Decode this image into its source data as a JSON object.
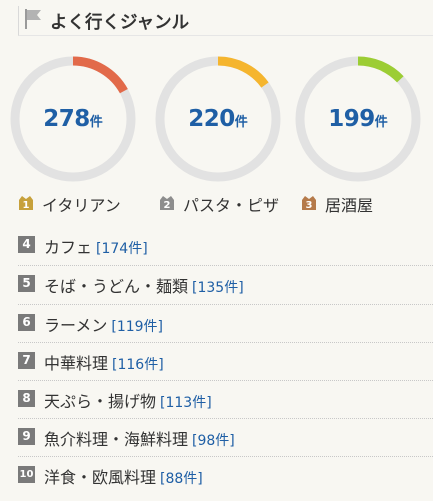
{
  "header": {
    "title": "よく行くジャンル",
    "icon": "flag-icon"
  },
  "colors": {
    "ring_track": "#e2e2e2",
    "count_text": "#1f5fa5",
    "rank_badge": "#7a7a7a"
  },
  "top_genres": [
    {
      "rank": "1",
      "name": "イタリアン",
      "count": "278",
      "unit": "件",
      "share": 0.17,
      "color": "#e26a4a",
      "badge_color": "#c7a13b"
    },
    {
      "rank": "2",
      "name": "パスタ・ピザ",
      "count": "220",
      "unit": "件",
      "share": 0.15,
      "color": "#f5b52e",
      "badge_color": "#8d8d8d"
    },
    {
      "rank": "3",
      "name": "居酒屋",
      "count": "199",
      "unit": "件",
      "share": 0.13,
      "color": "#9ccd34",
      "badge_color": "#b57a4a"
    }
  ],
  "other_genres": [
    {
      "rank": "4",
      "name": "カフェ",
      "count_text": "[174件]"
    },
    {
      "rank": "5",
      "name": "そば・うどん・麺類",
      "count_text": "[135件]"
    },
    {
      "rank": "6",
      "name": "ラーメン",
      "count_text": "[119件]"
    },
    {
      "rank": "7",
      "name": "中華料理",
      "count_text": "[116件]"
    },
    {
      "rank": "8",
      "name": "天ぷら・揚げ物",
      "count_text": "[113件]"
    },
    {
      "rank": "9",
      "name": "魚介料理・海鮮料理",
      "count_text": "[98件]"
    },
    {
      "rank": "10",
      "name": "洋食・欧風料理",
      "count_text": "[88件]"
    }
  ]
}
